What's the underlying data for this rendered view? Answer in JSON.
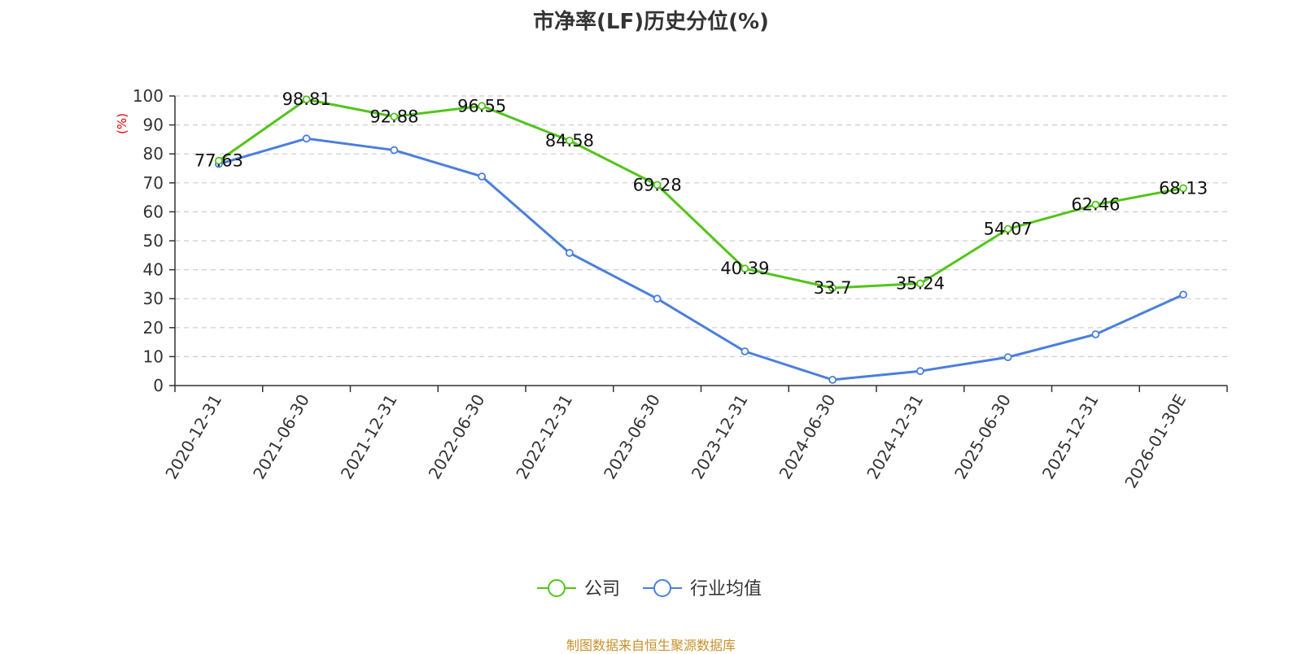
{
  "chart_data": {
    "type": "line",
    "title": "市净率(LF)历史分位(%)",
    "ylabel": "(%)",
    "xlabel": "",
    "ylim": [
      0,
      100
    ],
    "yticks": [
      0,
      10,
      20,
      30,
      40,
      50,
      60,
      70,
      80,
      90,
      100
    ],
    "grid": true,
    "legend_position": "bottom",
    "categories": [
      "2020-12-31",
      "2021-06-30",
      "2021-12-31",
      "2022-06-30",
      "2022-12-31",
      "2023-06-30",
      "2023-12-31",
      "2024-06-30",
      "2024-12-31",
      "2025-06-30",
      "2025-12-31",
      "2026-01-30E"
    ],
    "series": [
      {
        "name": "公司",
        "color": "#52c41a",
        "values": [
          77.63,
          98.81,
          92.88,
          96.55,
          84.58,
          69.28,
          40.39,
          33.7,
          35.24,
          54.07,
          62.46,
          68.13
        ],
        "labels": [
          "77.63",
          "98.81",
          "92.88",
          "96.55",
          "84.58",
          "69.28",
          "40.39",
          "33.7",
          "35.24",
          "54.07",
          "62.46",
          "68.13"
        ]
      },
      {
        "name": "行业均值",
        "color": "#4a7fdc",
        "values": [
          76.5,
          85.3,
          81.3,
          72.2,
          45.8,
          30.0,
          11.8,
          2.0,
          5.0,
          9.8,
          17.7,
          31.4
        ]
      }
    ]
  },
  "footer": "制图数据来自恒生聚源数据库"
}
